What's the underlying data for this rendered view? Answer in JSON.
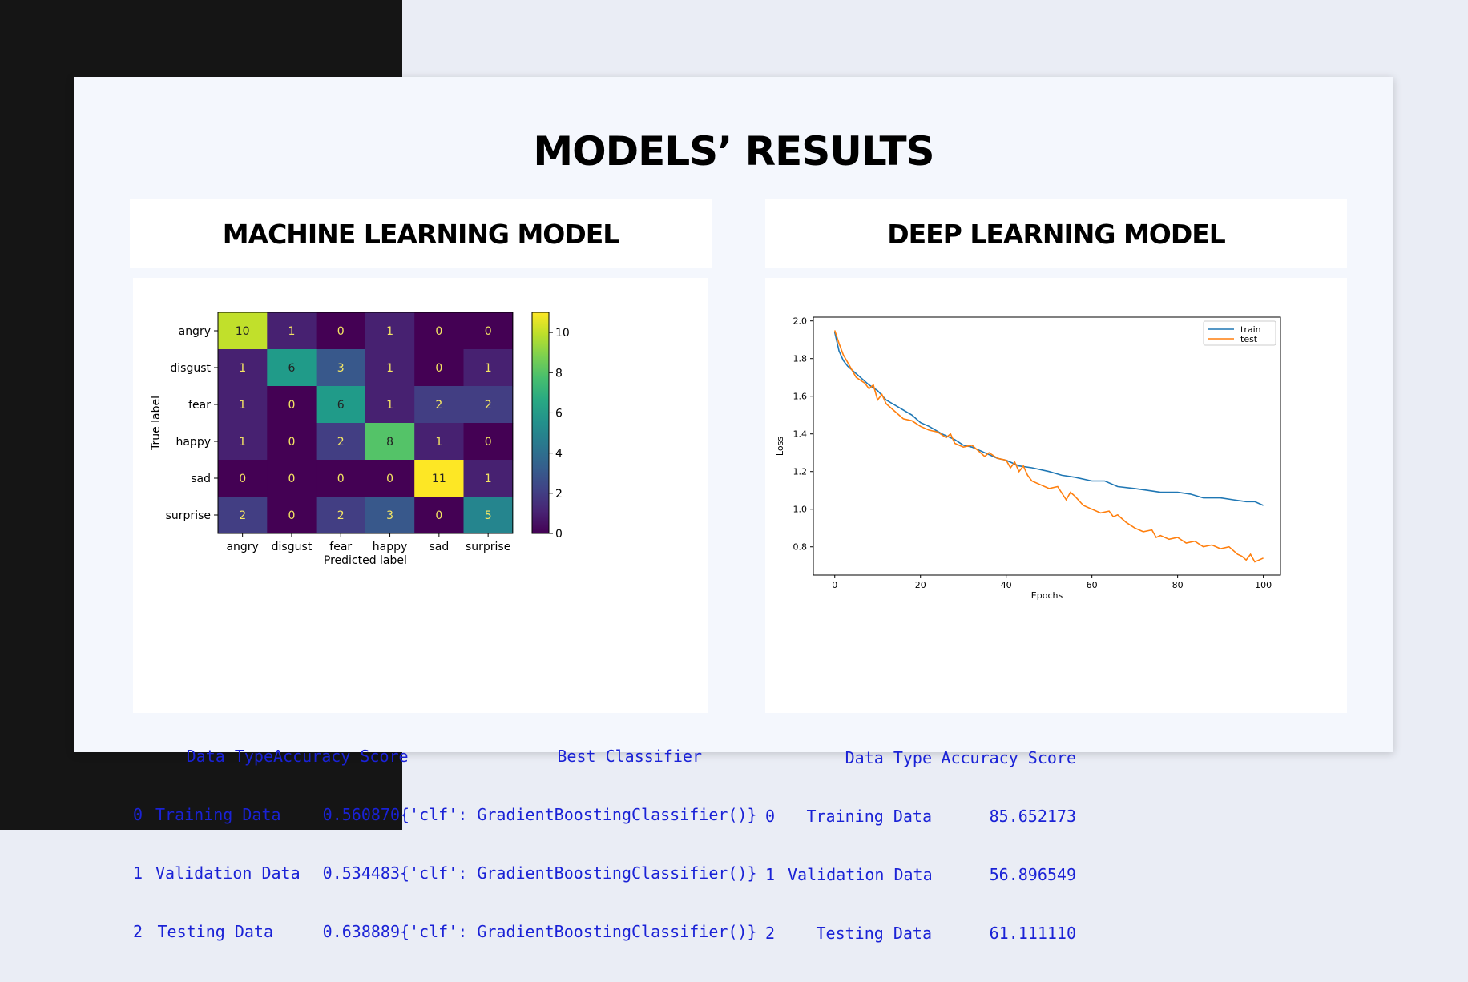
{
  "slide": {
    "title": "MODELS’ RESULTS"
  },
  "panels": {
    "ml": {
      "title": "MACHINE LEARNING MODEL"
    },
    "dl": {
      "title": "DEEP LEARNING MODEL"
    }
  },
  "colors": {
    "dark_band": "#151515",
    "table_text": "#1a22d6",
    "train_line": "#1f77b4",
    "test_line": "#ff7f0e"
  },
  "chart_data": [
    {
      "type": "heatmap",
      "colormap": "viridis",
      "xlabel": "Predicted label",
      "ylabel": "True label",
      "labels": [
        "angry",
        "disgust",
        "fear",
        "happy",
        "sad",
        "surprise"
      ],
      "matrix": [
        [
          10,
          1,
          0,
          1,
          0,
          0
        ],
        [
          1,
          6,
          3,
          1,
          0,
          1
        ],
        [
          1,
          0,
          6,
          1,
          2,
          2
        ],
        [
          1,
          0,
          2,
          8,
          1,
          0
        ],
        [
          0,
          0,
          0,
          0,
          11,
          1
        ],
        [
          2,
          0,
          2,
          3,
          0,
          5
        ]
      ],
      "colorbar": {
        "range": [
          0,
          11
        ],
        "ticks": [
          "0",
          "2",
          "4",
          "6",
          "8",
          "10"
        ]
      }
    },
    {
      "type": "line",
      "xlabel": "Epochs",
      "ylabel": "Loss",
      "xlim": [
        -5,
        104
      ],
      "ylim": [
        0.65,
        2.02
      ],
      "x_ticks": [
        "0",
        "20",
        "40",
        "60",
        "80",
        "100"
      ],
      "y_ticks": [
        "0.8",
        "1.0",
        "1.2",
        "1.4",
        "1.6",
        "1.8",
        "2.0"
      ],
      "legend_position": "top-right",
      "series": [
        {
          "name": "train",
          "color": "#1f77b4",
          "x": [
            0,
            1,
            2,
            3,
            4,
            5,
            6,
            8,
            10,
            12,
            15,
            18,
            20,
            22,
            25,
            28,
            30,
            32,
            35,
            38,
            40,
            43,
            46,
            50,
            53,
            56,
            60,
            63,
            66,
            70,
            73,
            76,
            80,
            83,
            86,
            90,
            93,
            96,
            98,
            100
          ],
          "y": [
            1.94,
            1.84,
            1.79,
            1.76,
            1.74,
            1.72,
            1.7,
            1.66,
            1.63,
            1.58,
            1.54,
            1.5,
            1.46,
            1.44,
            1.4,
            1.37,
            1.34,
            1.33,
            1.3,
            1.27,
            1.26,
            1.23,
            1.22,
            1.2,
            1.18,
            1.17,
            1.15,
            1.15,
            1.12,
            1.11,
            1.1,
            1.09,
            1.09,
            1.08,
            1.06,
            1.06,
            1.05,
            1.04,
            1.04,
            1.02
          ]
        },
        {
          "name": "test",
          "color": "#ff7f0e",
          "x": [
            0,
            1,
            2,
            3,
            4,
            5,
            7,
            8,
            9,
            10,
            11,
            12,
            14,
            16,
            18,
            20,
            22,
            24,
            26,
            27,
            28,
            30,
            32,
            34,
            35,
            36,
            38,
            40,
            41,
            42,
            43,
            44,
            45,
            46,
            48,
            50,
            52,
            54,
            55,
            56,
            58,
            60,
            62,
            64,
            65,
            66,
            68,
            70,
            72,
            74,
            75,
            76,
            78,
            80,
            82,
            84,
            86,
            88,
            90,
            92,
            94,
            95,
            96,
            97,
            98,
            99,
            100
          ],
          "y": [
            1.95,
            1.88,
            1.82,
            1.78,
            1.74,
            1.7,
            1.67,
            1.64,
            1.66,
            1.58,
            1.61,
            1.56,
            1.52,
            1.48,
            1.47,
            1.44,
            1.42,
            1.41,
            1.38,
            1.4,
            1.35,
            1.33,
            1.34,
            1.3,
            1.28,
            1.3,
            1.27,
            1.26,
            1.22,
            1.25,
            1.2,
            1.23,
            1.18,
            1.15,
            1.13,
            1.11,
            1.12,
            1.05,
            1.09,
            1.07,
            1.02,
            1.0,
            0.98,
            0.99,
            0.96,
            0.97,
            0.93,
            0.9,
            0.88,
            0.89,
            0.85,
            0.86,
            0.84,
            0.85,
            0.82,
            0.83,
            0.8,
            0.81,
            0.79,
            0.8,
            0.76,
            0.75,
            0.73,
            0.76,
            0.72,
            0.73,
            0.74
          ]
        }
      ]
    }
  ],
  "ml_table": {
    "headers": [
      "",
      "Data Type",
      "Accuracy Score",
      "Best Classifier"
    ],
    "rows": [
      [
        "0",
        "Training Data",
        "0.560870",
        "{'clf': GradientBoostingClassifier()}"
      ],
      [
        "1",
        "Validation Data",
        "0.534483",
        "{'clf': GradientBoostingClassifier()}"
      ],
      [
        "2",
        "Testing Data",
        "0.638889",
        "{'clf': GradientBoostingClassifier()}"
      ]
    ]
  },
  "dl_table": {
    "headers": [
      "",
      "Data Type",
      "Accuracy Score"
    ],
    "rows": [
      [
        "0",
        "Training Data",
        "85.652173"
      ],
      [
        "1",
        "Validation Data",
        "56.896549"
      ],
      [
        "2",
        "Testing Data",
        "61.111110"
      ]
    ]
  }
}
